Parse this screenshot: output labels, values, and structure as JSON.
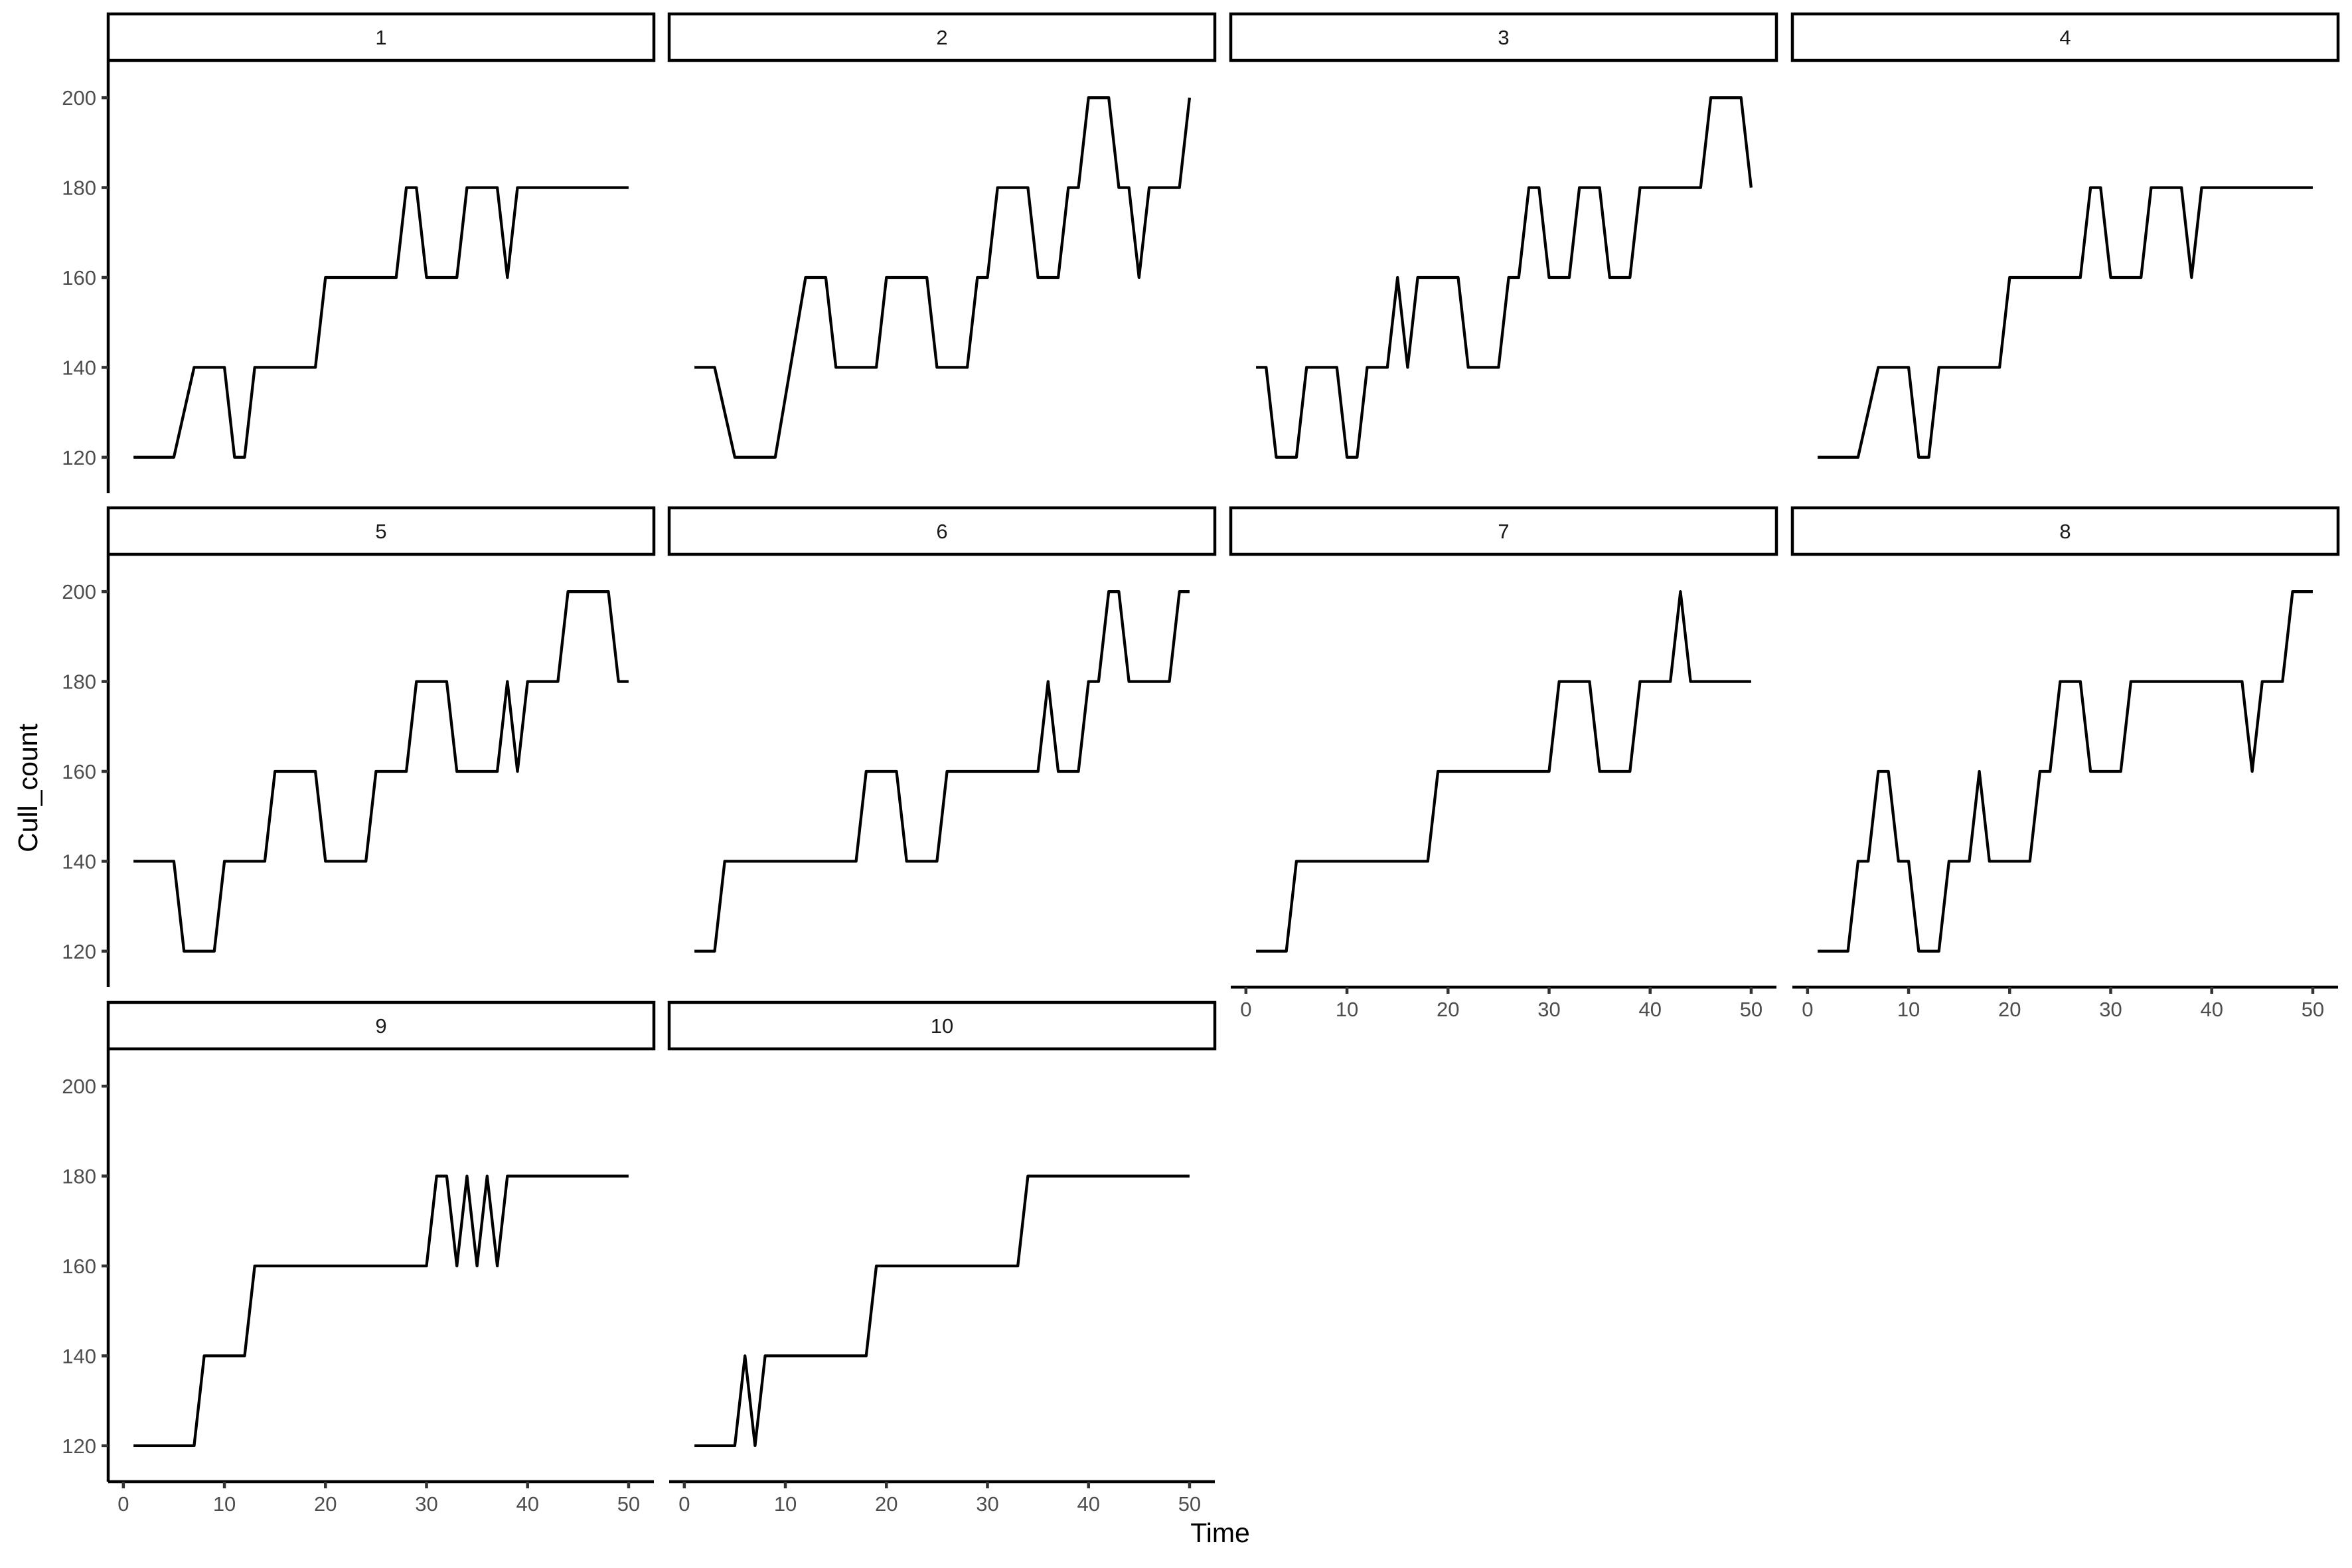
{
  "chart_data": {
    "type": "line",
    "layout": "facet_wrap",
    "ncol": 4,
    "xlabel": "Time",
    "ylabel": "Cull_count",
    "xlim": [
      1,
      50
    ],
    "ylim": [
      120,
      200
    ],
    "x_ticks": [
      0,
      10,
      20,
      30,
      40,
      50
    ],
    "y_ticks": [
      120,
      140,
      160,
      180,
      200
    ],
    "x_tick_labels": [
      "0",
      "10",
      "20",
      "30",
      "40",
      "50"
    ],
    "y_tick_labels": [
      "120",
      "140",
      "160",
      "180",
      "200"
    ],
    "line_color": "#000000",
    "grid": false,
    "legend": "none",
    "panels": [
      {
        "label": "1",
        "points": [
          [
            1,
            120
          ],
          [
            5,
            120
          ],
          [
            7,
            140
          ],
          [
            10,
            140
          ],
          [
            11,
            120
          ],
          [
            12,
            120
          ],
          [
            13,
            140
          ],
          [
            19,
            140
          ],
          [
            20,
            160
          ],
          [
            27,
            160
          ],
          [
            28,
            180
          ],
          [
            29,
            180
          ],
          [
            30,
            160
          ],
          [
            33,
            160
          ],
          [
            34,
            180
          ],
          [
            37,
            180
          ],
          [
            38,
            160
          ],
          [
            39,
            180
          ],
          [
            50,
            180
          ]
        ]
      },
      {
        "label": "2",
        "points": [
          [
            1,
            140
          ],
          [
            3,
            140
          ],
          [
            5,
            120
          ],
          [
            9,
            120
          ],
          [
            12,
            160
          ],
          [
            14,
            160
          ],
          [
            15,
            140
          ],
          [
            19,
            140
          ],
          [
            20,
            160
          ],
          [
            24,
            160
          ],
          [
            25,
            140
          ],
          [
            28,
            140
          ],
          [
            29,
            160
          ],
          [
            30,
            160
          ],
          [
            31,
            180
          ],
          [
            34,
            180
          ],
          [
            35,
            160
          ],
          [
            37,
            160
          ],
          [
            38,
            180
          ],
          [
            39,
            180
          ],
          [
            40,
            200
          ],
          [
            42,
            200
          ],
          [
            43,
            180
          ],
          [
            44,
            180
          ],
          [
            45,
            160
          ],
          [
            46,
            180
          ],
          [
            49,
            180
          ],
          [
            50,
            200
          ]
        ]
      },
      {
        "label": "3",
        "points": [
          [
            1,
            140
          ],
          [
            2,
            140
          ],
          [
            3,
            120
          ],
          [
            5,
            120
          ],
          [
            6,
            140
          ],
          [
            9,
            140
          ],
          [
            10,
            120
          ],
          [
            11,
            120
          ],
          [
            12,
            140
          ],
          [
            14,
            140
          ],
          [
            15,
            160
          ],
          [
            16,
            140
          ],
          [
            17,
            160
          ],
          [
            21,
            160
          ],
          [
            22,
            140
          ],
          [
            25,
            140
          ],
          [
            26,
            160
          ],
          [
            27,
            160
          ],
          [
            28,
            180
          ],
          [
            29,
            180
          ],
          [
            30,
            160
          ],
          [
            32,
            160
          ],
          [
            33,
            180
          ],
          [
            35,
            180
          ],
          [
            36,
            160
          ],
          [
            38,
            160
          ],
          [
            39,
            180
          ],
          [
            45,
            180
          ],
          [
            46,
            200
          ],
          [
            49,
            200
          ],
          [
            50,
            180
          ]
        ]
      },
      {
        "label": "4",
        "points": [
          [
            1,
            120
          ],
          [
            5,
            120
          ],
          [
            7,
            140
          ],
          [
            10,
            140
          ],
          [
            11,
            120
          ],
          [
            12,
            120
          ],
          [
            13,
            140
          ],
          [
            19,
            140
          ],
          [
            20,
            160
          ],
          [
            27,
            160
          ],
          [
            28,
            180
          ],
          [
            29,
            180
          ],
          [
            30,
            160
          ],
          [
            33,
            160
          ],
          [
            34,
            180
          ],
          [
            37,
            180
          ],
          [
            38,
            160
          ],
          [
            39,
            180
          ],
          [
            50,
            180
          ]
        ]
      },
      {
        "label": "5",
        "points": [
          [
            1,
            140
          ],
          [
            5,
            140
          ],
          [
            6,
            120
          ],
          [
            9,
            120
          ],
          [
            10,
            140
          ],
          [
            14,
            140
          ],
          [
            15,
            160
          ],
          [
            19,
            160
          ],
          [
            20,
            140
          ],
          [
            24,
            140
          ],
          [
            25,
            160
          ],
          [
            28,
            160
          ],
          [
            29,
            180
          ],
          [
            32,
            180
          ],
          [
            33,
            160
          ],
          [
            37,
            160
          ],
          [
            38,
            180
          ],
          [
            39,
            160
          ],
          [
            40,
            180
          ],
          [
            43,
            180
          ],
          [
            44,
            200
          ],
          [
            48,
            200
          ],
          [
            49,
            180
          ],
          [
            50,
            180
          ]
        ]
      },
      {
        "label": "6",
        "points": [
          [
            1,
            120
          ],
          [
            3,
            120
          ],
          [
            4,
            140
          ],
          [
            17,
            140
          ],
          [
            18,
            160
          ],
          [
            21,
            160
          ],
          [
            22,
            140
          ],
          [
            25,
            140
          ],
          [
            26,
            160
          ],
          [
            35,
            160
          ],
          [
            36,
            180
          ],
          [
            37,
            160
          ],
          [
            39,
            160
          ],
          [
            40,
            180
          ],
          [
            41,
            180
          ],
          [
            42,
            200
          ],
          [
            43,
            200
          ],
          [
            44,
            180
          ],
          [
            48,
            180
          ],
          [
            49,
            200
          ],
          [
            50,
            200
          ]
        ]
      },
      {
        "label": "7",
        "points": [
          [
            1,
            120
          ],
          [
            4,
            120
          ],
          [
            5,
            140
          ],
          [
            18,
            140
          ],
          [
            19,
            160
          ],
          [
            30,
            160
          ],
          [
            31,
            180
          ],
          [
            34,
            180
          ],
          [
            35,
            160
          ],
          [
            38,
            160
          ],
          [
            39,
            180
          ],
          [
            42,
            180
          ],
          [
            43,
            200
          ],
          [
            44,
            180
          ],
          [
            50,
            180
          ]
        ]
      },
      {
        "label": "8",
        "points": [
          [
            1,
            120
          ],
          [
            4,
            120
          ],
          [
            5,
            140
          ],
          [
            6,
            140
          ],
          [
            7,
            160
          ],
          [
            8,
            160
          ],
          [
            9,
            140
          ],
          [
            10,
            140
          ],
          [
            11,
            120
          ],
          [
            13,
            120
          ],
          [
            14,
            140
          ],
          [
            16,
            140
          ],
          [
            17,
            160
          ],
          [
            18,
            140
          ],
          [
            22,
            140
          ],
          [
            23,
            160
          ],
          [
            24,
            160
          ],
          [
            25,
            180
          ],
          [
            27,
            180
          ],
          [
            28,
            160
          ],
          [
            31,
            160
          ],
          [
            32,
            180
          ],
          [
            43,
            180
          ],
          [
            44,
            160
          ],
          [
            45,
            180
          ],
          [
            47,
            180
          ],
          [
            48,
            200
          ],
          [
            50,
            200
          ]
        ]
      },
      {
        "label": "9",
        "points": [
          [
            1,
            120
          ],
          [
            7,
            120
          ],
          [
            8,
            140
          ],
          [
            12,
            140
          ],
          [
            13,
            160
          ],
          [
            30,
            160
          ],
          [
            31,
            180
          ],
          [
            32,
            180
          ],
          [
            33,
            160
          ],
          [
            34,
            180
          ],
          [
            35,
            160
          ],
          [
            36,
            180
          ],
          [
            37,
            160
          ],
          [
            38,
            180
          ],
          [
            50,
            180
          ]
        ]
      },
      {
        "label": "10",
        "points": [
          [
            1,
            120
          ],
          [
            5,
            120
          ],
          [
            6,
            140
          ],
          [
            7,
            120
          ],
          [
            8,
            140
          ],
          [
            18,
            140
          ],
          [
            19,
            160
          ],
          [
            33,
            160
          ],
          [
            34,
            180
          ],
          [
            50,
            180
          ]
        ]
      }
    ]
  }
}
